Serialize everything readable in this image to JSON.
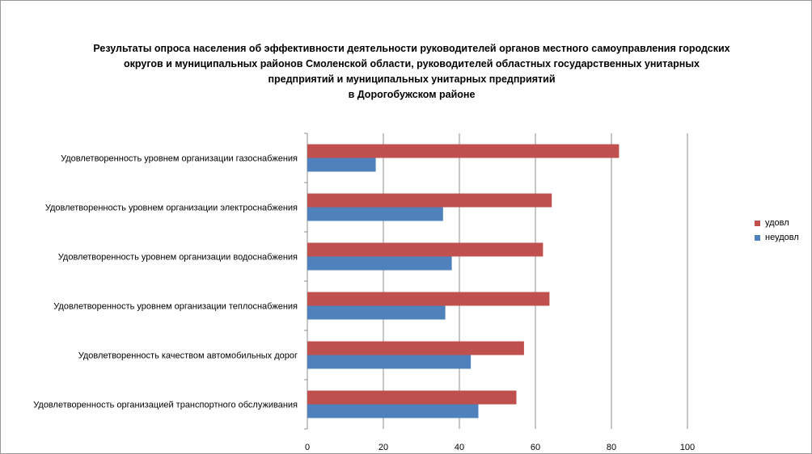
{
  "chart_data": {
    "type": "bar",
    "orientation": "horizontal",
    "title_lines": [
      "Результаты опроса населения об эффективности деятельности руководителей органов местного самоуправления городских",
      "округов и муниципальных районов Смоленской области, руководителей областных государственных унитарных",
      "предприятий и муниципальных унитарных предприятий",
      "в Дорогобужском районе"
    ],
    "categories": [
      "Удовлетворенность уровнем организации газоснабжения",
      "Удовлетворенность уровнем организации электроснабжения",
      "Удовлетворенность уровнем организации водоснабжения",
      "Удовлетворенность уровнем организации теплоснабжения",
      "Удовлетворенность качеством автомобильных дорог",
      "Удовлетворенность организацией транспортного обслуживания"
    ],
    "series": [
      {
        "name": "удовл",
        "color": "#c0504d",
        "values": [
          82,
          64.3,
          62,
          63.7,
          57,
          55
        ]
      },
      {
        "name": "неудовл",
        "color": "#4f81bd",
        "values": [
          18,
          35.7,
          38,
          36.3,
          43,
          45
        ]
      }
    ],
    "xlim": [
      0,
      100
    ],
    "xticks": [
      "0",
      "20",
      "40",
      "60",
      "80",
      "100"
    ],
    "grid": true,
    "legend_position": "right"
  }
}
